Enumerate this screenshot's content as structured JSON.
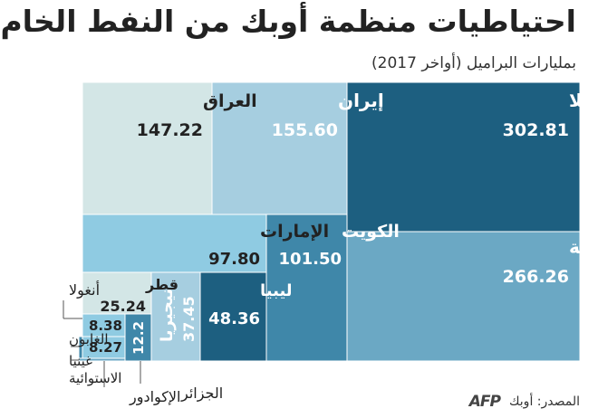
{
  "title": "احتياطيات منظمة أوبك من النفط الخام",
  "subtitle": "بمليارات البراميل (أواخر 2017)",
  "source": "المصدر: أوبك",
  "logo": "AFP",
  "chart_data": {
    "type": "treemap",
    "title": "احتياطيات منظمة أوبك من النفط الخام",
    "subtitle": "بمليارات البراميل (أواخر 2017)",
    "items": [
      {
        "name": "فنزويلا",
        "value": 302.81,
        "color": "#1d5f80",
        "label_color": "#ffffff"
      },
      {
        "name": "السعودية",
        "value": 266.26,
        "color": "#6ba8c4",
        "label_color": "#ffffff"
      },
      {
        "name": "إيران",
        "value": 155.6,
        "color": "#a6cee0",
        "label_color": "#ffffff"
      },
      {
        "name": "العراق",
        "value": 147.22,
        "color": "#d3e6e6",
        "label_color": "#222222"
      },
      {
        "name": "الكويت",
        "value": 101.5,
        "color": "#3f87a9",
        "label_color": "#ffffff"
      },
      {
        "name": "الإمارات",
        "value": 97.8,
        "color": "#8fcbe2",
        "label_color": "#222222"
      },
      {
        "name": "ليبيا",
        "value": 48.36,
        "color": "#1d5f80",
        "label_color": "#ffffff"
      },
      {
        "name": "نيجيريا",
        "value": 37.45,
        "color": "#a6cee0",
        "label_color": "#ffffff"
      },
      {
        "name": "قطر",
        "value": 25.24,
        "color": "#d3e6e6",
        "label_color": "#222222"
      },
      {
        "name": "الجزائر",
        "value": 12.2,
        "color": "#3f87a9",
        "label_color": "#ffffff"
      },
      {
        "name": "أنغولا",
        "value": 8.38,
        "color": "#8fcbe2",
        "label_color": "#222222"
      },
      {
        "name": "الإكوادور",
        "value": 8.27,
        "color": "#8fcbe2",
        "label_color": "#222222"
      },
      {
        "name": "الغابون",
        "value": null,
        "color": "#3f87a9",
        "label_color": "#222222"
      },
      {
        "name": "غينيا الاستوائية",
        "value": null,
        "color": "#6ba8c4",
        "label_color": "#222222"
      }
    ]
  }
}
